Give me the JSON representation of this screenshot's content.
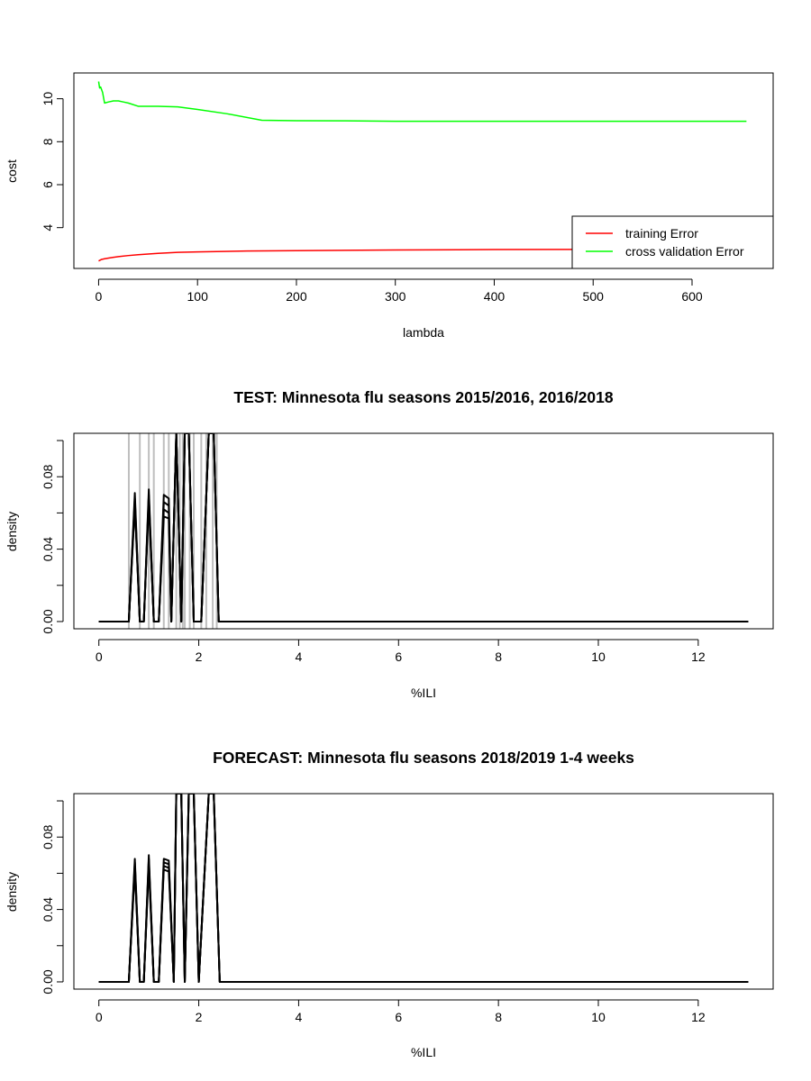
{
  "chart_data": [
    {
      "type": "line",
      "title": "",
      "xlabel": "lambda",
      "ylabel": "cost",
      "xlim": [
        -25,
        682
      ],
      "ylim": [
        2.1,
        11.2
      ],
      "xticks": [
        0,
        100,
        200,
        300,
        400,
        500,
        600
      ],
      "yticks": [
        4,
        6,
        8,
        10
      ],
      "legend": "bottom-right",
      "grid": false,
      "series": [
        {
          "name": "training Error",
          "color": "#ff0000",
          "x": [
            0,
            3,
            6,
            10,
            15,
            20,
            30,
            40,
            60,
            80,
            100,
            150,
            200,
            300,
            400,
            500,
            600,
            655
          ],
          "y": [
            2.45,
            2.52,
            2.55,
            2.58,
            2.62,
            2.65,
            2.7,
            2.74,
            2.8,
            2.85,
            2.87,
            2.91,
            2.93,
            2.96,
            2.98,
            2.99,
            3.0,
            3.0
          ]
        },
        {
          "name": "cross validation Error",
          "color": "#00ff00",
          "x": [
            0,
            1,
            2,
            4,
            6,
            10,
            15,
            20,
            25,
            30,
            40,
            60,
            80,
            100,
            130,
            165,
            200,
            250,
            300,
            330,
            400,
            500,
            600,
            655
          ],
          "y": [
            10.8,
            10.5,
            10.55,
            10.3,
            9.8,
            9.85,
            9.9,
            9.9,
            9.85,
            9.8,
            9.65,
            9.65,
            9.62,
            9.5,
            9.3,
            9.0,
            8.98,
            8.97,
            8.95,
            8.95,
            8.95,
            8.95,
            8.95,
            8.95
          ]
        }
      ]
    },
    {
      "type": "line",
      "title": "TEST: Minnesota  flu seasons 2015/2016, 2016/2018",
      "xlabel": "%ILI",
      "ylabel": "density",
      "xlim": [
        -0.5,
        13.5
      ],
      "ylim": [
        -0.004,
        0.104
      ],
      "xticks": [
        0,
        2,
        4,
        6,
        8,
        10,
        12
      ],
      "yticks": [
        0.0,
        0.02,
        0.04,
        0.06,
        0.08,
        0.1
      ],
      "ytick_labels": [
        "0.00",
        "",
        "0.04",
        "",
        "0.08",
        ""
      ],
      "vlines": {
        "color": "#bebebe",
        "x": [
          0.6,
          0.82,
          1.0,
          1.1,
          1.3,
          1.4,
          1.55,
          1.62,
          1.68,
          1.72,
          1.82,
          1.9,
          2.05,
          2.15,
          2.28,
          2.36
        ]
      },
      "series": [
        {
          "color": "#000000",
          "x": [
            0,
            0.6,
            0.72,
            0.82,
            0.9,
            1.0,
            1.1,
            1.2,
            1.3,
            1.4,
            1.45,
            1.55,
            1.65,
            1.72,
            1.8,
            1.9,
            2.05,
            2.2,
            2.3,
            2.4,
            13
          ],
          "y": [
            0,
            0,
            0.071,
            0,
            0,
            0.073,
            0,
            0,
            0.07,
            0.068,
            0,
            0.104,
            0,
            0.104,
            0.104,
            0,
            0,
            0.104,
            0.104,
            0,
            0
          ]
        },
        {
          "color": "#000000",
          "x": [
            0,
            0.6,
            0.72,
            0.82,
            0.9,
            1.0,
            1.1,
            1.2,
            1.3,
            1.4,
            1.45,
            1.55,
            1.65,
            1.72,
            1.8,
            1.9,
            2.05,
            2.2,
            2.3,
            2.4,
            13
          ],
          "y": [
            0,
            0,
            0.068,
            0,
            0,
            0.07,
            0,
            0,
            0.066,
            0.064,
            0,
            0.104,
            0,
            0.104,
            0.104,
            0,
            0,
            0.104,
            0.104,
            0,
            0
          ]
        },
        {
          "color": "#000000",
          "x": [
            0,
            0.6,
            0.72,
            0.82,
            0.9,
            1.0,
            1.1,
            1.2,
            1.3,
            1.4,
            1.45,
            1.55,
            1.65,
            1.72,
            1.8,
            1.9,
            2.05,
            2.2,
            2.3,
            2.4,
            13
          ],
          "y": [
            0,
            0,
            0.066,
            0,
            0,
            0.068,
            0,
            0,
            0.062,
            0.06,
            0,
            0.104,
            0,
            0.104,
            0.104,
            0,
            0,
            0.104,
            0.104,
            0,
            0
          ]
        },
        {
          "color": "#000000",
          "x": [
            0,
            0.6,
            0.72,
            0.82,
            0.9,
            1.0,
            1.1,
            1.2,
            1.3,
            1.4,
            1.45,
            1.55,
            1.65,
            1.72,
            1.8,
            1.9,
            2.05,
            2.2,
            2.3,
            2.4,
            13
          ],
          "y": [
            0,
            0,
            0.064,
            0,
            0,
            0.066,
            0,
            0,
            0.058,
            0.057,
            0,
            0.104,
            0,
            0.104,
            0.104,
            0,
            0,
            0.104,
            0.104,
            0,
            0
          ]
        }
      ]
    },
    {
      "type": "line",
      "title": "FORECAST: Minnesota flu seasons 2018/2019 1-4 weeks",
      "xlabel": "%ILI",
      "ylabel": "density",
      "xlim": [
        -0.5,
        13.5
      ],
      "ylim": [
        -0.004,
        0.104
      ],
      "xticks": [
        0,
        2,
        4,
        6,
        8,
        10,
        12
      ],
      "yticks": [
        0.0,
        0.02,
        0.04,
        0.06,
        0.08,
        0.1
      ],
      "ytick_labels": [
        "0.00",
        "",
        "0.04",
        "",
        "0.08",
        ""
      ],
      "series": [
        {
          "color": "#000000",
          "x": [
            0,
            0.6,
            0.72,
            0.82,
            0.9,
            1.0,
            1.1,
            1.2,
            1.3,
            1.4,
            1.5,
            1.55,
            1.65,
            1.72,
            1.8,
            1.9,
            2.0,
            2.2,
            2.3,
            2.42,
            13
          ],
          "y": [
            0,
            0,
            0.068,
            0,
            0,
            0.07,
            0,
            0,
            0.068,
            0.067,
            0,
            0.104,
            0.104,
            0,
            0.104,
            0.104,
            0,
            0.104,
            0.104,
            0,
            0
          ]
        },
        {
          "color": "#000000",
          "x": [
            0,
            0.6,
            0.72,
            0.82,
            0.9,
            1.0,
            1.1,
            1.2,
            1.3,
            1.4,
            1.5,
            1.55,
            1.65,
            1.72,
            1.8,
            1.9,
            2.0,
            2.2,
            2.3,
            2.42,
            13
          ],
          "y": [
            0,
            0,
            0.066,
            0,
            0,
            0.068,
            0,
            0,
            0.066,
            0.065,
            0,
            0.104,
            0.104,
            0,
            0.104,
            0.104,
            0,
            0.104,
            0.104,
            0,
            0
          ]
        },
        {
          "color": "#000000",
          "x": [
            0,
            0.6,
            0.72,
            0.82,
            0.9,
            1.0,
            1.1,
            1.2,
            1.3,
            1.4,
            1.5,
            1.55,
            1.65,
            1.72,
            1.8,
            1.9,
            2.0,
            2.2,
            2.3,
            2.42,
            13
          ],
          "y": [
            0,
            0,
            0.064,
            0,
            0,
            0.066,
            0,
            0,
            0.064,
            0.063,
            0,
            0.104,
            0.104,
            0,
            0.104,
            0.104,
            0,
            0.104,
            0.104,
            0,
            0
          ]
        },
        {
          "color": "#000000",
          "x": [
            0,
            0.6,
            0.72,
            0.82,
            0.9,
            1.0,
            1.1,
            1.2,
            1.3,
            1.4,
            1.5,
            1.55,
            1.65,
            1.72,
            1.8,
            1.9,
            2.0,
            2.2,
            2.3,
            2.42,
            13
          ],
          "y": [
            0,
            0,
            0.062,
            0,
            0,
            0.064,
            0,
            0,
            0.062,
            0.061,
            0,
            0.104,
            0.104,
            0,
            0.104,
            0.104,
            0,
            0.104,
            0.104,
            0,
            0
          ]
        }
      ]
    }
  ]
}
